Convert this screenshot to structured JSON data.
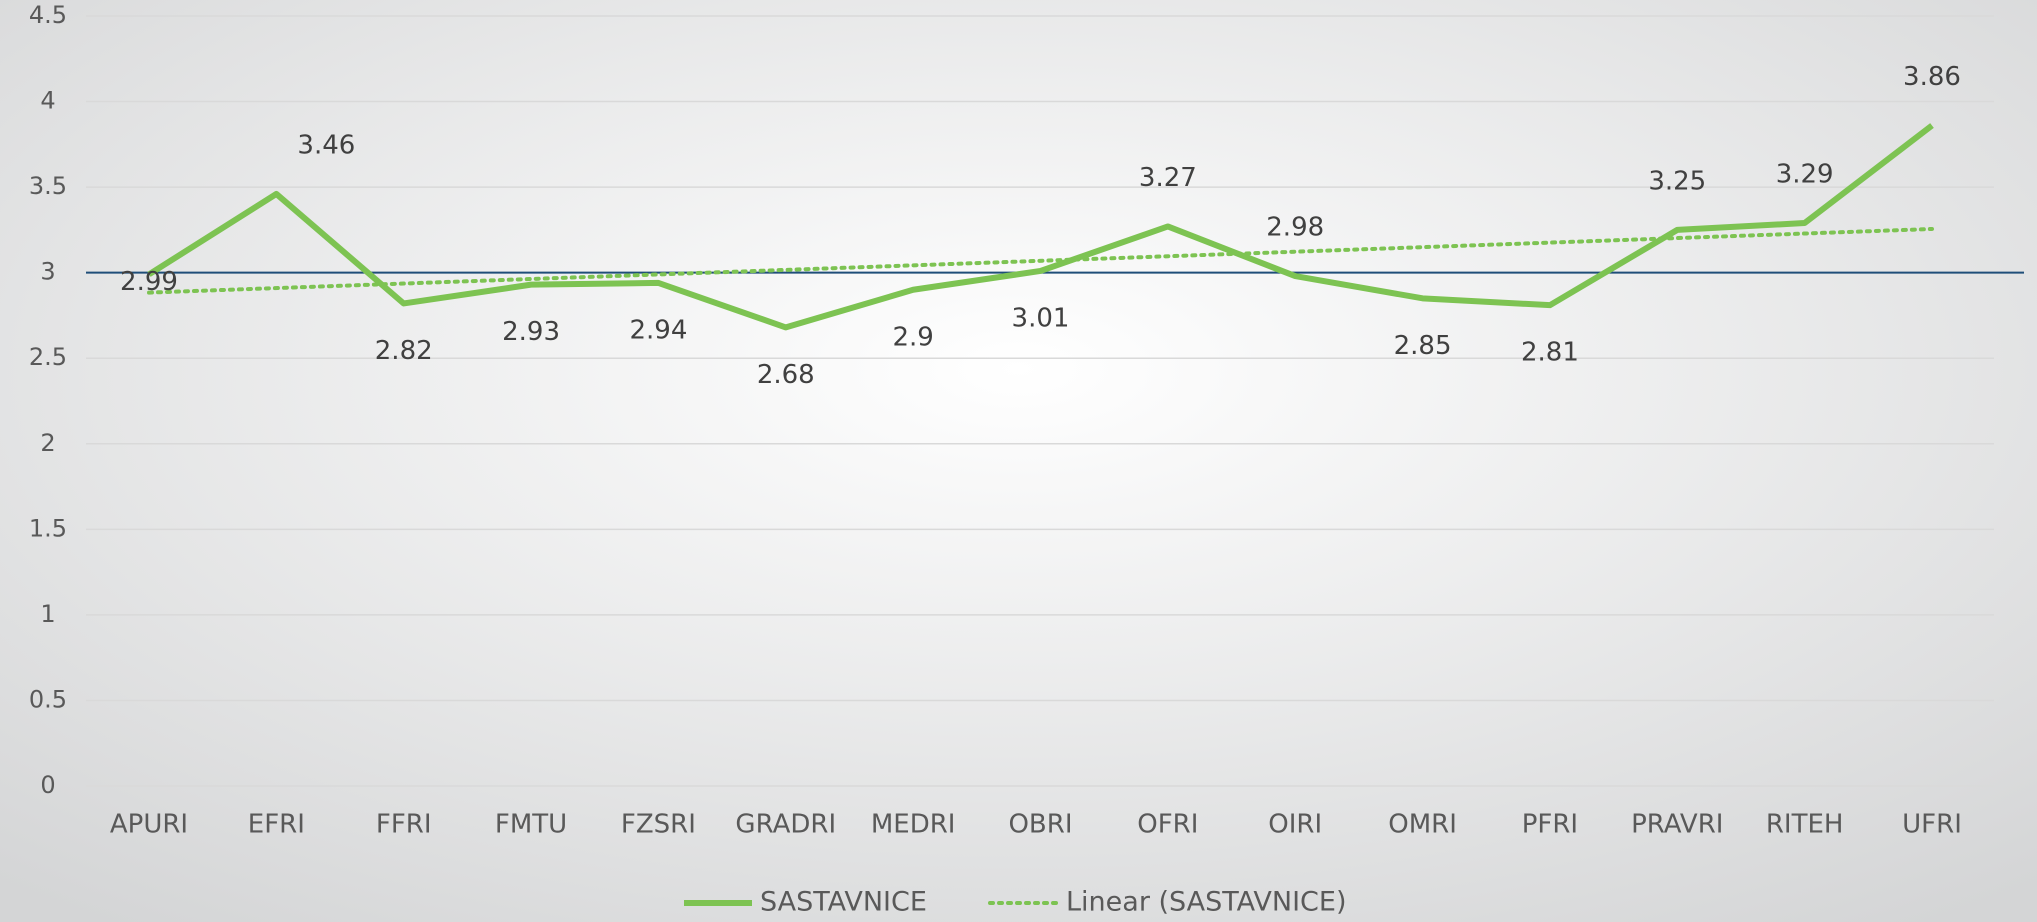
{
  "chart_data": {
    "type": "line",
    "categories": [
      "APURI",
      "EFRI",
      "FFRI",
      "FMTU",
      "FZSRI",
      "GRADRI",
      "MEDRI",
      "OBRI",
      "OFRI",
      "OIRI",
      "OMRI",
      "PFRI",
      "PRAVRI",
      "RITEH",
      "UFRI"
    ],
    "series": [
      {
        "name": "SASTAVNICE",
        "color": "#7dc352",
        "values": [
          2.99,
          3.46,
          2.82,
          2.93,
          2.94,
          2.68,
          2.9,
          3.01,
          3.27,
          2.98,
          2.85,
          2.81,
          3.25,
          3.29,
          3.86
        ]
      }
    ],
    "trendline": {
      "name": "Linear (SASTAVNICE)",
      "color": "#7dc352",
      "kind": "linear"
    },
    "reference_line": {
      "value": 3,
      "color": "#1f4e79"
    },
    "ylim": [
      0,
      4.5
    ],
    "yticks": [
      0,
      0.5,
      1,
      1.5,
      2,
      2.5,
      3,
      3.5,
      4,
      4.5
    ],
    "grid": true,
    "legend": "bottom"
  }
}
